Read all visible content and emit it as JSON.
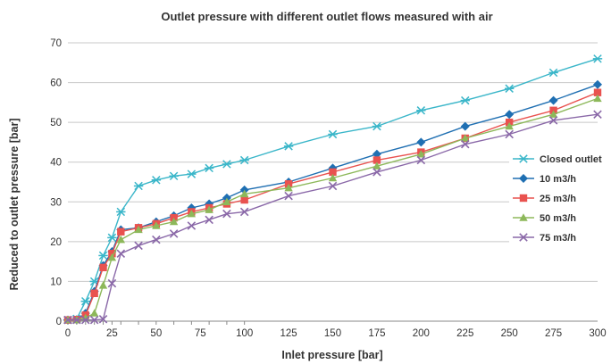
{
  "chart_data": {
    "type": "line",
    "title": "Outlet pressure with different outlet flows measured with air",
    "xlabel": "Inlet pressure [bar]",
    "ylabel": "Reduced to outlet pressure [bar]",
    "xlim": [
      0,
      300
    ],
    "ylim": [
      0,
      70
    ],
    "x_ticks": [
      0,
      25,
      50,
      75,
      100,
      125,
      150,
      175,
      200,
      225,
      250,
      275,
      300
    ],
    "x_tick_labels": [
      "0",
      "25",
      "50",
      "75",
      "100",
      "125",
      "150",
      "175",
      "200",
      "225",
      "250",
      "275",
      "300"
    ],
    "y_ticks": [
      0,
      10,
      20,
      30,
      40,
      50,
      60,
      70
    ],
    "y_tick_labels": [
      "0",
      "10",
      "20",
      "30",
      "40",
      "50",
      "60",
      "70"
    ],
    "x_minor_marks": [
      0,
      5,
      10,
      15,
      20,
      25,
      30,
      40,
      50,
      60,
      70,
      80,
      90,
      100
    ],
    "grid": "horizontal",
    "legend_position": "right",
    "series": [
      {
        "name": "Closed outlet",
        "color": "#3ab6c9",
        "marker": "asterisk",
        "points": [
          [
            0,
            0.3
          ],
          [
            5,
            0.6
          ],
          [
            10,
            5
          ],
          [
            15,
            10
          ],
          [
            20,
            16.5
          ],
          [
            25,
            21
          ],
          [
            30,
            27.5
          ],
          [
            40,
            34
          ],
          [
            50,
            35.5
          ],
          [
            60,
            36.5
          ],
          [
            70,
            37
          ],
          [
            80,
            38.5
          ],
          [
            90,
            39.5
          ],
          [
            100,
            40.5
          ],
          [
            125,
            44
          ],
          [
            150,
            47
          ],
          [
            175,
            49
          ],
          [
            200,
            53
          ],
          [
            225,
            55.5
          ],
          [
            250,
            58.5
          ],
          [
            275,
            62.5
          ],
          [
            300,
            66
          ]
        ]
      },
      {
        "name": "10 m3/h",
        "color": "#1f6fb2",
        "marker": "diamond",
        "points": [
          [
            0,
            0.3
          ],
          [
            5,
            0.4
          ],
          [
            10,
            2
          ],
          [
            15,
            7.5
          ],
          [
            20,
            14
          ],
          [
            25,
            17.5
          ],
          [
            30,
            23
          ],
          [
            40,
            23.5
          ],
          [
            50,
            25
          ],
          [
            60,
            26.5
          ],
          [
            70,
            28.5
          ],
          [
            80,
            29.5
          ],
          [
            90,
            31
          ],
          [
            100,
            33
          ],
          [
            125,
            35
          ],
          [
            150,
            38.5
          ],
          [
            175,
            42
          ],
          [
            200,
            45
          ],
          [
            225,
            49
          ],
          [
            250,
            52
          ],
          [
            275,
            55.5
          ],
          [
            300,
            59.5
          ]
        ]
      },
      {
        "name": "25 m3/h",
        "color": "#e9524f",
        "marker": "square",
        "points": [
          [
            0,
            0.3
          ],
          [
            5,
            0.4
          ],
          [
            10,
            1.5
          ],
          [
            15,
            7
          ],
          [
            20,
            13.5
          ],
          [
            25,
            17
          ],
          [
            30,
            22.5
          ],
          [
            40,
            23.5
          ],
          [
            50,
            24.5
          ],
          [
            60,
            26
          ],
          [
            70,
            27.5
          ],
          [
            80,
            28.5
          ],
          [
            90,
            29.5
          ],
          [
            100,
            30.5
          ],
          [
            125,
            34.5
          ],
          [
            150,
            37.5
          ],
          [
            175,
            40.5
          ],
          [
            200,
            42.5
          ],
          [
            225,
            46
          ],
          [
            250,
            50
          ],
          [
            275,
            53
          ],
          [
            300,
            57.5
          ]
        ]
      },
      {
        "name": "50 m3/h",
        "color": "#8db85a",
        "marker": "triangle",
        "points": [
          [
            0,
            0.3
          ],
          [
            5,
            0.3
          ],
          [
            10,
            0.8
          ],
          [
            15,
            2
          ],
          [
            20,
            9
          ],
          [
            25,
            16
          ],
          [
            30,
            20.5
          ],
          [
            40,
            23
          ],
          [
            50,
            24
          ],
          [
            60,
            25
          ],
          [
            70,
            27
          ],
          [
            80,
            28
          ],
          [
            90,
            30
          ],
          [
            100,
            32
          ],
          [
            125,
            33.5
          ],
          [
            150,
            36
          ],
          [
            175,
            39
          ],
          [
            200,
            42
          ],
          [
            225,
            46
          ],
          [
            250,
            49
          ],
          [
            275,
            52
          ],
          [
            300,
            56
          ]
        ]
      },
      {
        "name": "75 m3/h",
        "color": "#8a68a8",
        "marker": "x",
        "points": [
          [
            0,
            0.3
          ],
          [
            5,
            0.3
          ],
          [
            10,
            0.3
          ],
          [
            15,
            0.3
          ],
          [
            20,
            0.5
          ],
          [
            25,
            9.5
          ],
          [
            30,
            17
          ],
          [
            40,
            19
          ],
          [
            50,
            20.5
          ],
          [
            60,
            22
          ],
          [
            70,
            24
          ],
          [
            80,
            25.5
          ],
          [
            90,
            27
          ],
          [
            100,
            27.5
          ],
          [
            125,
            31.5
          ],
          [
            150,
            34
          ],
          [
            175,
            37.5
          ],
          [
            200,
            40.5
          ],
          [
            225,
            44.5
          ],
          [
            250,
            47
          ],
          [
            275,
            50.5
          ],
          [
            300,
            52
          ]
        ]
      }
    ]
  }
}
